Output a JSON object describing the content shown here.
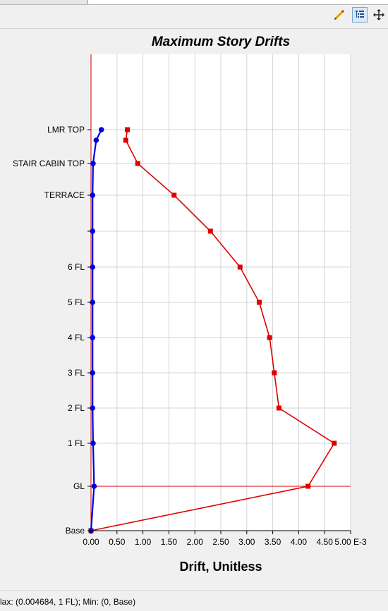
{
  "toolbar": {
    "buttons": [
      {
        "name": "pencil-icon",
        "label": "Edit"
      },
      {
        "name": "tree-list-icon",
        "label": "Display Table"
      },
      {
        "name": "move-icon",
        "label": "Pan"
      }
    ]
  },
  "chart_data": {
    "type": "line",
    "title": "Maximum Story Drifts",
    "xlabel": "Drift, Unitless",
    "ylabel": "",
    "x_axis": {
      "min": 0,
      "max": 0.005,
      "ticks": [
        "0.00",
        "0.50",
        "1.00",
        "1.50",
        "2.00",
        "2.50",
        "3.00",
        "3.50",
        "4.00",
        "4.50",
        "5.00"
      ],
      "unit_suffix": "E-3"
    },
    "story_labels": [
      "Base",
      "GL",
      "1 FL",
      "2 FL",
      "3 FL",
      "4 FL",
      "5 FL",
      "6 FL",
      "",
      "TERRACE",
      "STAIR CABIN TOP",
      "LMR TOP"
    ],
    "reference_line_story": "GL",
    "series": [
      {
        "color": "#e00000",
        "marker": "square",
        "points": [
          {
            "drift": 0.0,
            "story": "Base"
          },
          {
            "drift": 0.00418,
            "story": "GL"
          },
          {
            "drift": 0.004684,
            "story": "1 FL"
          },
          {
            "drift": 0.00362,
            "story": "2 FL"
          },
          {
            "drift": 0.00353,
            "story": "3 FL"
          },
          {
            "drift": 0.00344,
            "story": "4 FL"
          },
          {
            "drift": 0.00324,
            "story": "5 FL"
          },
          {
            "drift": 0.00287,
            "story": "6 FL"
          },
          {
            "drift": 0.0023,
            "story": ""
          },
          {
            "drift": 0.0016,
            "story": "TERRACE"
          },
          {
            "drift": 0.0009,
            "story": "STAIR CABIN TOP"
          },
          {
            "drift": 0.00067,
            "story": "LMR TOP"
          },
          {
            "drift": 0.0007,
            "story": "LMR TOP"
          }
        ]
      },
      {
        "color": "#0000e0",
        "marker": "circle",
        "points": [
          {
            "drift": 0.0,
            "story": "Base"
          },
          {
            "drift": 6e-05,
            "story": "GL"
          },
          {
            "drift": 4e-05,
            "story": "1 FL"
          },
          {
            "drift": 3e-05,
            "story": "2 FL"
          },
          {
            "drift": 3e-05,
            "story": "3 FL"
          },
          {
            "drift": 3e-05,
            "story": "4 FL"
          },
          {
            "drift": 3e-05,
            "story": "5 FL"
          },
          {
            "drift": 3e-05,
            "story": "6 FL"
          },
          {
            "drift": 3e-05,
            "story": ""
          },
          {
            "drift": 3e-05,
            "story": "TERRACE"
          },
          {
            "drift": 4e-05,
            "story": "STAIR CABIN TOP"
          },
          {
            "drift": 0.0001,
            "story": "LMR TOP"
          },
          {
            "drift": 0.0002,
            "story": "LMR TOP"
          }
        ]
      }
    ],
    "grid": true
  },
  "status": {
    "text": "lax: (0.004684, 1 FL);   Min: (0, Base)"
  }
}
